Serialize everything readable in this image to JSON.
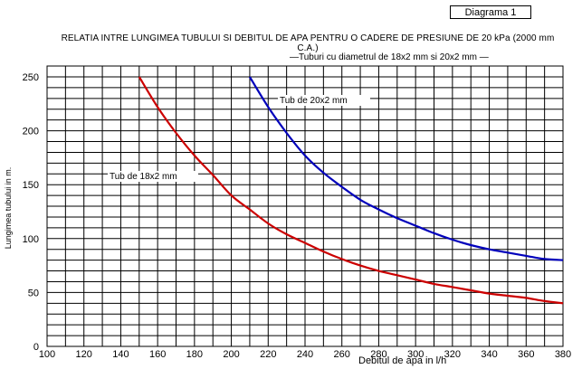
{
  "badge": "Diagrama 1",
  "chart_data": {
    "type": "line",
    "title": "RELATIA INTRE LUNGIMEA TUBULUI SI DEBITUL DE APA PENTRU O CADERE DE PRESIUNE DE  20 kPa (2000 mm C.A.)",
    "subtitle": "—Tuburi cu diametrul de 18x2 mm si 20x2 mm —",
    "xlabel": "Debitul de apa in l/h",
    "ylabel": "Lungimea tubului in m.",
    "xlim": [
      100,
      380
    ],
    "ylim": [
      0,
      250
    ],
    "x_ticks": [
      100,
      120,
      140,
      160,
      180,
      200,
      220,
      240,
      260,
      280,
      300,
      320,
      340,
      360,
      380
    ],
    "y_ticks": [
      0,
      50,
      100,
      150,
      200,
      250
    ],
    "grid": true,
    "series": [
      {
        "name": "Tub de 18x2 mm",
        "color": "#cc0000",
        "x": [
          150,
          160,
          170,
          180,
          190,
          200,
          210,
          220,
          230,
          240,
          250,
          260,
          270,
          280,
          290,
          300,
          310,
          320,
          330,
          340,
          350,
          360,
          370,
          380
        ],
        "y": [
          250,
          222,
          198,
          177,
          159,
          140,
          127,
          114,
          104,
          96,
          88,
          81,
          75,
          70,
          66,
          62,
          58,
          55,
          52,
          49,
          47,
          45,
          42,
          40
        ]
      },
      {
        "name": "Tub de 20x2 mm",
        "color": "#0000bb",
        "x": [
          210,
          220,
          230,
          240,
          250,
          260,
          270,
          280,
          290,
          300,
          310,
          320,
          330,
          340,
          350,
          360,
          370,
          380
        ],
        "y": [
          250,
          222,
          198,
          177,
          161,
          148,
          136,
          127,
          119,
          112,
          105,
          99,
          94,
          90,
          87,
          84,
          81,
          80
        ]
      }
    ]
  }
}
